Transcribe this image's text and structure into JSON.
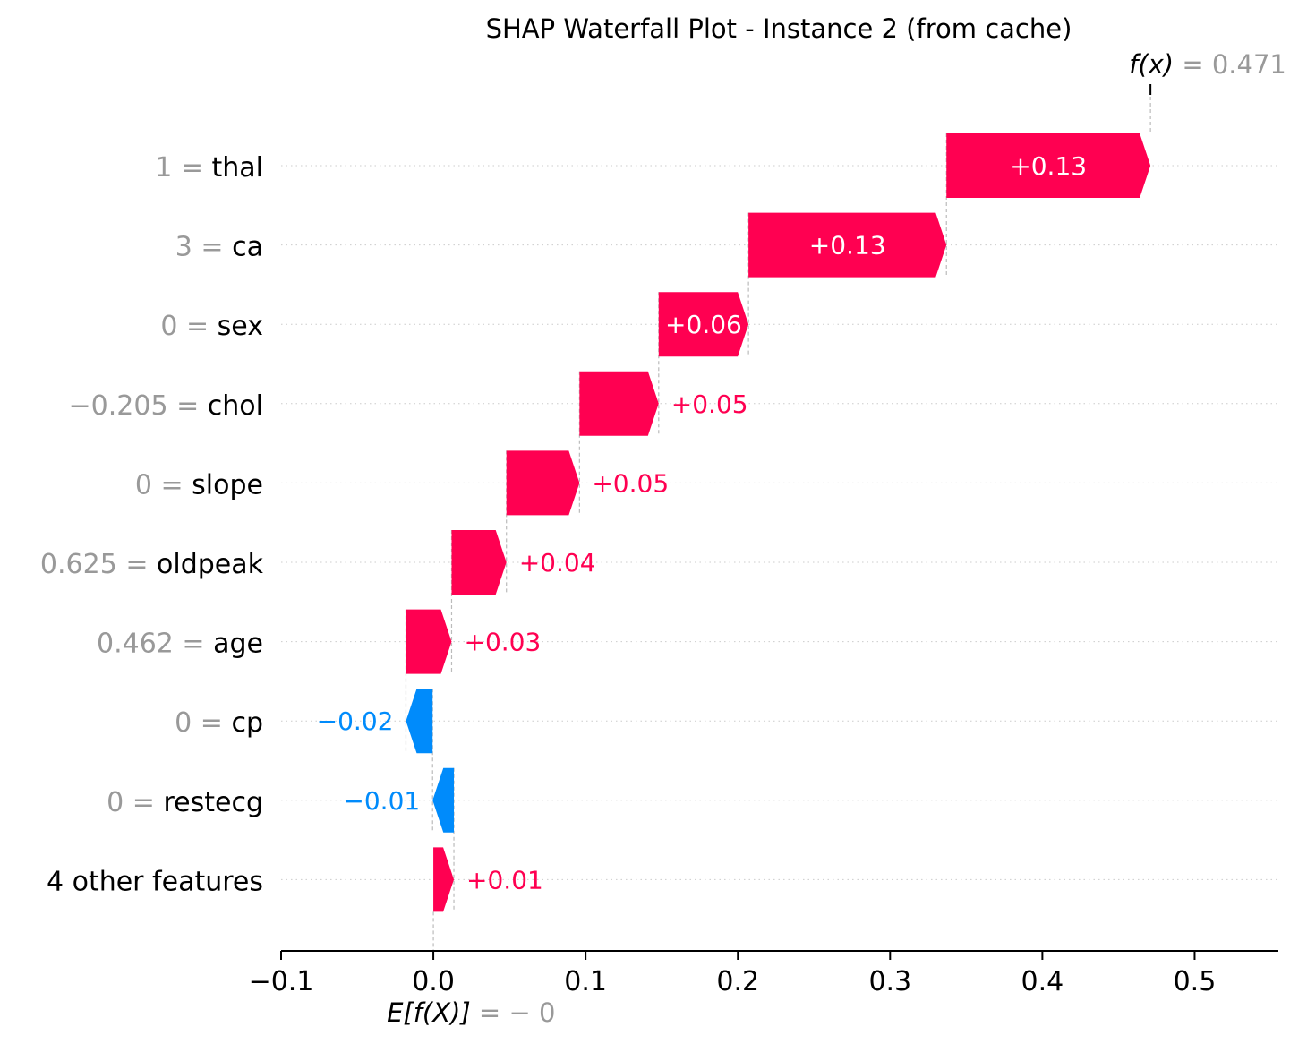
{
  "chart_data": {
    "type": "waterfall",
    "title": "SHAP Waterfall Plot - Instance 2 (from cache)",
    "fx_label": "f(x)",
    "fx_value_text": "= 0.471",
    "fx_value": 0.471,
    "ex_label": "E[f(X)]",
    "ex_value_text": "= − 0",
    "ex_value": 0.0,
    "xlim": [
      -0.1,
      0.555
    ],
    "xticks": [
      -0.1,
      0.0,
      0.1,
      0.2,
      0.3,
      0.4,
      0.5
    ],
    "xtick_labels": [
      "−0.1",
      "0.0",
      "0.1",
      "0.2",
      "0.3",
      "0.4",
      "0.5"
    ],
    "colors": {
      "positive": "#ff0051",
      "negative": "#008bfb",
      "value_gray": "#999999"
    },
    "features": [
      {
        "value": "1",
        "name": "thal",
        "start": 0.337,
        "end": 0.471,
        "label": "+0.13"
      },
      {
        "value": "3",
        "name": "ca",
        "start": 0.207,
        "end": 0.337,
        "label": "+0.13"
      },
      {
        "value": "0",
        "name": "sex",
        "start": 0.148,
        "end": 0.207,
        "label": "+0.06"
      },
      {
        "value": "−0.205",
        "name": "chol",
        "start": 0.096,
        "end": 0.148,
        "label": "+0.05"
      },
      {
        "value": "0",
        "name": "slope",
        "start": 0.048,
        "end": 0.096,
        "label": "+0.05"
      },
      {
        "value": "0.625",
        "name": "oldpeak",
        "start": 0.012,
        "end": 0.048,
        "label": "+0.04"
      },
      {
        "value": "0.462",
        "name": "age",
        "start": -0.018,
        "end": 0.012,
        "label": "+0.03"
      },
      {
        "value": "0",
        "name": "cp",
        "start": -0.0005,
        "end": -0.018,
        "label": "−0.02"
      },
      {
        "value": "0",
        "name": "restecg",
        "start": 0.0135,
        "end": -0.0005,
        "label": "−0.01"
      },
      {
        "value": "",
        "name": "4 other features",
        "start": 0.0,
        "end": 0.0135,
        "label": "+0.01"
      }
    ]
  }
}
